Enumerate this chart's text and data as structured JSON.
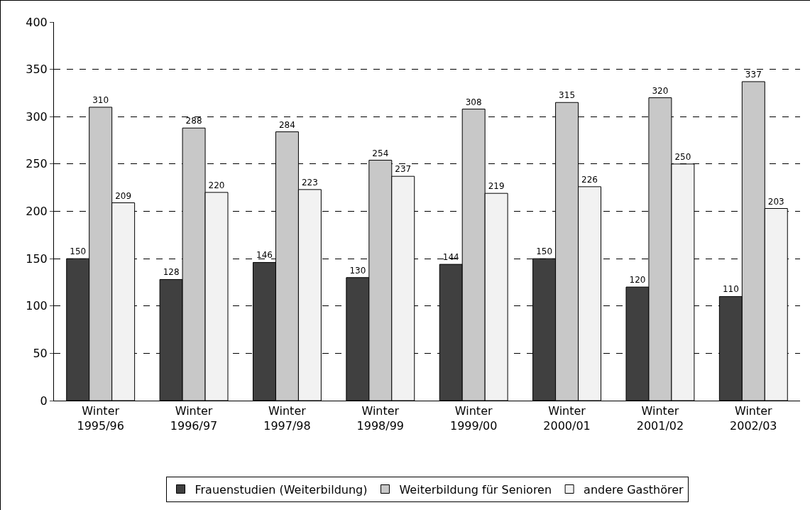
{
  "chart_data": {
    "type": "bar",
    "categories": [
      "Winter 1995/96",
      "Winter 1996/97",
      "Winter 1997/98",
      "Winter 1998/99",
      "Winter 1999/00",
      "Winter 2000/01",
      "Winter 2001/02",
      "Winter 2002/03"
    ],
    "series": [
      {
        "name": "Frauenstudien (Weiterbildung)",
        "color": "#404040",
        "values": [
          150,
          128,
          146,
          130,
          144,
          150,
          120,
          110
        ]
      },
      {
        "name": "Weiterbildung für Senioren",
        "color": "#c8c8c8",
        "values": [
          310,
          288,
          284,
          254,
          308,
          315,
          320,
          337
        ]
      },
      {
        "name": "andere Gasthörer",
        "color": "#f2f2f2",
        "values": [
          209,
          220,
          223,
          237,
          219,
          226,
          250,
          203
        ]
      }
    ],
    "ylim": [
      0,
      400
    ],
    "yticks": [
      0,
      50,
      100,
      150,
      200,
      250,
      300,
      350,
      400
    ],
    "grid": "y",
    "legend": "bottom",
    "data_labels": true
  }
}
